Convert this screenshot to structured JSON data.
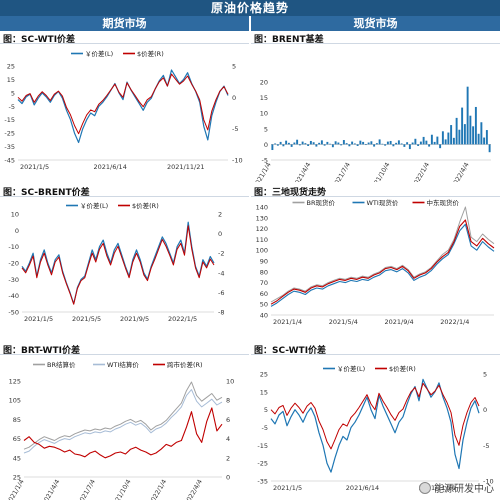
{
  "header": {
    "title": "原油价格趋势",
    "left_section": "期货市场",
    "right_section": "现货市场"
  },
  "watermark": {
    "text": "能源研发中心"
  },
  "colors": {
    "blue": "#1f77b4",
    "red": "#c00000",
    "grey": "#a0a0a0",
    "navy": "#1f3f7f"
  },
  "chart_data": [
    {
      "id": "p1",
      "type": "line",
      "title": "图：SC-WTI价差",
      "xticks": [
        "2021/1/5",
        "2021/6/14",
        "2021/11/21"
      ],
      "xtick_pos": [
        0.0,
        0.35,
        0.7
      ],
      "y_left": {
        "lim": [
          -45,
          25
        ],
        "ticks": [
          25,
          15,
          5,
          -5,
          -15,
          -25,
          -35,
          -45
        ]
      },
      "y_right": {
        "lim": [
          -10,
          5
        ],
        "ticks": [
          5,
          0,
          -5,
          -10
        ]
      },
      "series": [
        {
          "name": "￥价差(L)",
          "axis": "left",
          "color": "#1f77b4",
          "width": 1.2,
          "values": [
            0,
            -3,
            2,
            4,
            -4,
            1,
            5,
            2,
            -2,
            3,
            6,
            1,
            -8,
            -15,
            -25,
            -32,
            -22,
            -15,
            -10,
            -12,
            -5,
            -2,
            2,
            7,
            12,
            5,
            0,
            13,
            7,
            2,
            -3,
            -8,
            -2,
            1,
            8,
            14,
            18,
            10,
            22,
            17,
            12,
            15,
            20,
            12,
            6,
            -2,
            -20,
            -30,
            -12,
            -2,
            6,
            10,
            3
          ]
        },
        {
          "name": "$价差(R)",
          "axis": "right",
          "color": "#c00000",
          "width": 1.0,
          "values": [
            0,
            -0.6,
            0.3,
            0.6,
            -0.8,
            0.2,
            0.9,
            0.3,
            -0.5,
            0.5,
            1.0,
            0.2,
            -1.6,
            -2.8,
            -4.5,
            -5.8,
            -4.2,
            -2.8,
            -2.0,
            -2.3,
            -1.1,
            -0.5,
            0.3,
            1.2,
            2.1,
            0.8,
            0.0,
            2.3,
            1.2,
            0.3,
            -0.7,
            -1.5,
            -0.4,
            0.1,
            1.4,
            2.5,
            3.1,
            1.8,
            3.7,
            2.9,
            2.1,
            2.6,
            3.4,
            2.1,
            1.0,
            -0.4,
            -3.6,
            -5.2,
            -2.2,
            -0.4,
            1.0,
            1.7,
            0.5
          ]
        }
      ],
      "legend": "top-center"
    },
    {
      "id": "p2",
      "type": "bar",
      "title": "图：BRENT基差",
      "xticks": [
        "2021/1/4",
        "2021/4/4",
        "2021/7/4",
        "2021/10/4",
        "2022/1/4",
        "2022/4/4"
      ],
      "xtick_pos": [
        0.0,
        0.18,
        0.36,
        0.54,
        0.72,
        0.9
      ],
      "y_left": {
        "lim": [
          -5,
          20
        ],
        "ticks": [
          20,
          15,
          10,
          5,
          0,
          -5
        ]
      },
      "series": [
        {
          "name": "BRENT基差",
          "axis": "left",
          "color": "#1f77b4",
          "values": [
            -1.8,
            0.3,
            -0.4,
            0.8,
            -0.6,
            1.2,
            0.5,
            -0.8,
            0.6,
            1.5,
            -0.3,
            0.9,
            0.4,
            -0.5,
            1.1,
            0.7,
            -0.7,
            0.5,
            1.3,
            -0.4,
            0.8,
            0.2,
            -0.9,
            1.0,
            0.6,
            -0.3,
            1.4,
            0.4,
            -0.6,
            0.9,
            0.3,
            -0.5,
            1.2,
            0.8,
            -0.2,
            0.6,
            1.0,
            -0.7,
            0.4,
            1.6,
            0.2,
            -0.4,
            0.9,
            1.1,
            -0.6,
            0.5,
            1.3,
            0.3,
            -0.8,
            0.7,
            -1.5,
            0.6,
            1.8,
            -0.5,
            0.9,
            2.4,
            1.2,
            -0.7,
            3.1,
            0.8,
            2.5,
            -1.2,
            4.2,
            1.6,
            3.8,
            6.2,
            2.1,
            8.5,
            4.7,
            11.8,
            6.5,
            18.5,
            9.2,
            5.8,
            12.0,
            3.4,
            7.1,
            2.2,
            4.6,
            -2.5
          ]
        }
      ]
    },
    {
      "id": "p3",
      "type": "line",
      "title": "图：SC-BRENT价差",
      "xticks": [
        "2021/1/5",
        "2021/5/5",
        "2021/9/5",
        "2022/1/5"
      ],
      "xtick_pos": [
        0.0,
        0.25,
        0.5,
        0.75
      ],
      "y_left": {
        "lim": [
          -50,
          10
        ],
        "ticks": [
          10,
          0,
          -10,
          -20,
          -30,
          -40,
          -50
        ]
      },
      "y_right": {
        "lim": [
          -8,
          2
        ],
        "ticks": [
          2,
          0,
          -2,
          -4,
          -6,
          -8
        ]
      },
      "series": [
        {
          "name": "￥价差(L)",
          "axis": "left",
          "color": "#1f77b4",
          "width": 1.2,
          "values": [
            -22,
            -25,
            -20,
            -14,
            -28,
            -18,
            -12,
            -20,
            -26,
            -18,
            -15,
            -25,
            -32,
            -38,
            -45,
            -35,
            -30,
            -28,
            -20,
            -12,
            -18,
            -10,
            -6,
            -14,
            -20,
            -12,
            -8,
            -15,
            -22,
            -28,
            -18,
            -12,
            -18,
            -26,
            -30,
            -22,
            -16,
            -10,
            -4,
            -8,
            -14,
            -20,
            -10,
            -6,
            -14,
            5,
            -10,
            -22,
            -28,
            -18,
            -22,
            -16,
            -20
          ]
        },
        {
          "name": "$价差(R)",
          "axis": "right",
          "color": "#c00000",
          "width": 1.0,
          "values": [
            -3.5,
            -4.0,
            -3.2,
            -2.3,
            -4.5,
            -2.9,
            -2.0,
            -3.2,
            -4.2,
            -2.9,
            -2.4,
            -4.0,
            -5.1,
            -6.1,
            -7.2,
            -5.6,
            -4.8,
            -4.5,
            -3.2,
            -2.0,
            -2.9,
            -1.6,
            -1.0,
            -2.3,
            -3.2,
            -2.0,
            -1.3,
            -2.4,
            -3.5,
            -4.5,
            -2.9,
            -2.0,
            -2.9,
            -4.2,
            -4.8,
            -3.5,
            -2.6,
            -1.6,
            -0.6,
            -1.3,
            -2.2,
            -3.2,
            -1.6,
            -1.0,
            -2.2,
            0.8,
            -1.6,
            -3.5,
            -4.5,
            -2.9,
            -3.5,
            -2.6,
            -3.2
          ]
        }
      ],
      "legend": "top-center"
    },
    {
      "id": "p4",
      "type": "line",
      "title": "图：三地现货走势",
      "xticks": [
        "2021/1/4",
        "2021/5/4",
        "2021/9/4",
        "2022/1/4"
      ],
      "xtick_pos": [
        0.0,
        0.25,
        0.5,
        0.75
      ],
      "y_left": {
        "lim": [
          40,
          140
        ],
        "ticks": [
          140,
          130,
          120,
          110,
          100,
          90,
          80,
          70,
          60,
          50,
          40
        ]
      },
      "series": [
        {
          "name": "BR现货价",
          "axis": "left",
          "color": "#a0a0a0",
          "width": 1.0,
          "values": [
            52,
            55,
            58,
            62,
            65,
            64,
            62,
            66,
            68,
            67,
            70,
            72,
            74,
            73,
            75,
            74,
            76,
            75,
            78,
            80,
            84,
            85,
            83,
            86,
            82,
            75,
            78,
            80,
            84,
            90,
            96,
            100,
            110,
            126,
            140,
            112,
            108,
            115,
            110,
            106
          ]
        },
        {
          "name": "WTI现货价",
          "axis": "left",
          "color": "#1f77b4",
          "width": 1.1,
          "values": [
            48,
            51,
            55,
            59,
            62,
            61,
            59,
            63,
            65,
            64,
            67,
            69,
            71,
            70,
            72,
            71,
            73,
            72,
            75,
            77,
            81,
            82,
            80,
            83,
            79,
            72,
            75,
            77,
            81,
            87,
            92,
            96,
            106,
            118,
            124,
            104,
            100,
            108,
            103,
            99
          ]
        },
        {
          "name": "中东现货价",
          "axis": "left",
          "color": "#c00000",
          "width": 1.1,
          "values": [
            50,
            53,
            57,
            61,
            64,
            63,
            61,
            65,
            67,
            66,
            69,
            71,
            73,
            72,
            74,
            73,
            75,
            74,
            77,
            79,
            83,
            84,
            82,
            85,
            81,
            74,
            77,
            79,
            83,
            89,
            94,
            98,
            108,
            122,
            128,
            108,
            104,
            111,
            106,
            102
          ]
        }
      ],
      "legend": "top-center"
    },
    {
      "id": "p5",
      "type": "line",
      "title": "图：BRT-WTI价差",
      "xticks": [
        "2021/1/4",
        "2021/4/4",
        "2021/7/4",
        "2021/10/4",
        "2022/1/4",
        "2022/4/4"
      ],
      "xtick_pos": [
        0.0,
        0.18,
        0.36,
        0.54,
        0.72,
        0.9
      ],
      "y_left": {
        "lim": [
          25,
          125
        ],
        "ticks": [
          125,
          105,
          85,
          65,
          45,
          25
        ]
      },
      "y_right": {
        "lim": [
          0,
          10
        ],
        "ticks": [
          10,
          8,
          6,
          4,
          2,
          0
        ]
      },
      "series": [
        {
          "name": "BR结算价",
          "axis": "left",
          "color": "#a0a0a0",
          "width": 1.0,
          "values": [
            54,
            56,
            60,
            64,
            67,
            65,
            63,
            66,
            68,
            67,
            70,
            72,
            74,
            73,
            75,
            74,
            76,
            75,
            78,
            80,
            83,
            85,
            82,
            84,
            80,
            74,
            78,
            80,
            84,
            90,
            96,
            102,
            115,
            124,
            110,
            104,
            108,
            112,
            105,
            108
          ]
        },
        {
          "name": "WTI结算价",
          "axis": "left",
          "color": "#a7bcd6",
          "width": 1.0,
          "values": [
            50,
            52,
            57,
            61,
            64,
            62,
            60,
            63,
            65,
            64,
            67,
            69,
            71,
            70,
            72,
            71,
            73,
            72,
            75,
            77,
            80,
            82,
            79,
            81,
            77,
            71,
            75,
            77,
            81,
            87,
            92,
            98,
            110,
            116,
            104,
            98,
            102,
            106,
            100,
            103
          ]
        },
        {
          "name": "跨市价差(R)",
          "axis": "right",
          "color": "#c00000",
          "width": 1.1,
          "values": [
            3.8,
            4.2,
            3.6,
            3.4,
            3.0,
            3.2,
            3.1,
            2.9,
            2.6,
            2.8,
            2.4,
            2.3,
            2.1,
            2.5,
            2.7,
            2.3,
            2.0,
            2.2,
            2.5,
            2.6,
            2.4,
            2.9,
            3.1,
            2.8,
            2.6,
            2.3,
            2.5,
            2.9,
            3.4,
            3.2,
            3.6,
            3.8,
            5.2,
            6.8,
            4.5,
            3.6,
            5.8,
            7.2,
            4.8,
            5.5
          ]
        }
      ],
      "legend": "top-center"
    },
    {
      "id": "p6",
      "type": "line",
      "title": "图：SC-WTI价差",
      "xticks": [
        "2021/1/5",
        "2021/6/14",
        "2021/11/21"
      ],
      "xtick_pos": [
        0.0,
        0.35,
        0.7
      ],
      "y_left": {
        "lim": [
          -35,
          25
        ],
        "ticks": [
          25,
          15,
          5,
          -5,
          -15,
          -25,
          -35
        ]
      },
      "y_right": {
        "lim": [
          -10,
          5
        ],
        "ticks": [
          5,
          0,
          -5,
          -10
        ]
      },
      "series": [
        {
          "name": "￥价差(L)",
          "axis": "left",
          "color": "#1f77b4",
          "width": 1.2,
          "values": [
            0,
            -3,
            2,
            4,
            -4,
            1,
            5,
            2,
            -2,
            3,
            6,
            1,
            -8,
            -15,
            -25,
            -30,
            -22,
            -15,
            -10,
            -12,
            -5,
            -2,
            2,
            7,
            12,
            5,
            0,
            13,
            7,
            2,
            -3,
            -8,
            -2,
            1,
            8,
            14,
            18,
            10,
            22,
            17,
            12,
            15,
            20,
            12,
            6,
            -2,
            -20,
            -28,
            -12,
            -2,
            6,
            10,
            3
          ]
        },
        {
          "name": "$价差(R)",
          "axis": "right",
          "color": "#c00000",
          "width": 1.0,
          "values": [
            0,
            -0.6,
            0.3,
            0.6,
            -0.8,
            0.2,
            0.9,
            0.3,
            -0.5,
            0.5,
            1.0,
            0.2,
            -1.6,
            -2.8,
            -4.5,
            -5.5,
            -4.2,
            -2.8,
            -2.0,
            -2.3,
            -1.1,
            -0.5,
            0.3,
            1.2,
            2.1,
            0.8,
            0.0,
            2.3,
            1.2,
            0.3,
            -0.7,
            -1.5,
            -0.4,
            0.1,
            1.4,
            2.5,
            3.1,
            1.8,
            3.7,
            2.9,
            2.1,
            2.6,
            3.4,
            2.1,
            1.0,
            -0.4,
            -3.6,
            -5.0,
            -2.2,
            -0.4,
            1.0,
            1.7,
            0.5
          ]
        }
      ],
      "legend": "top-center"
    }
  ]
}
